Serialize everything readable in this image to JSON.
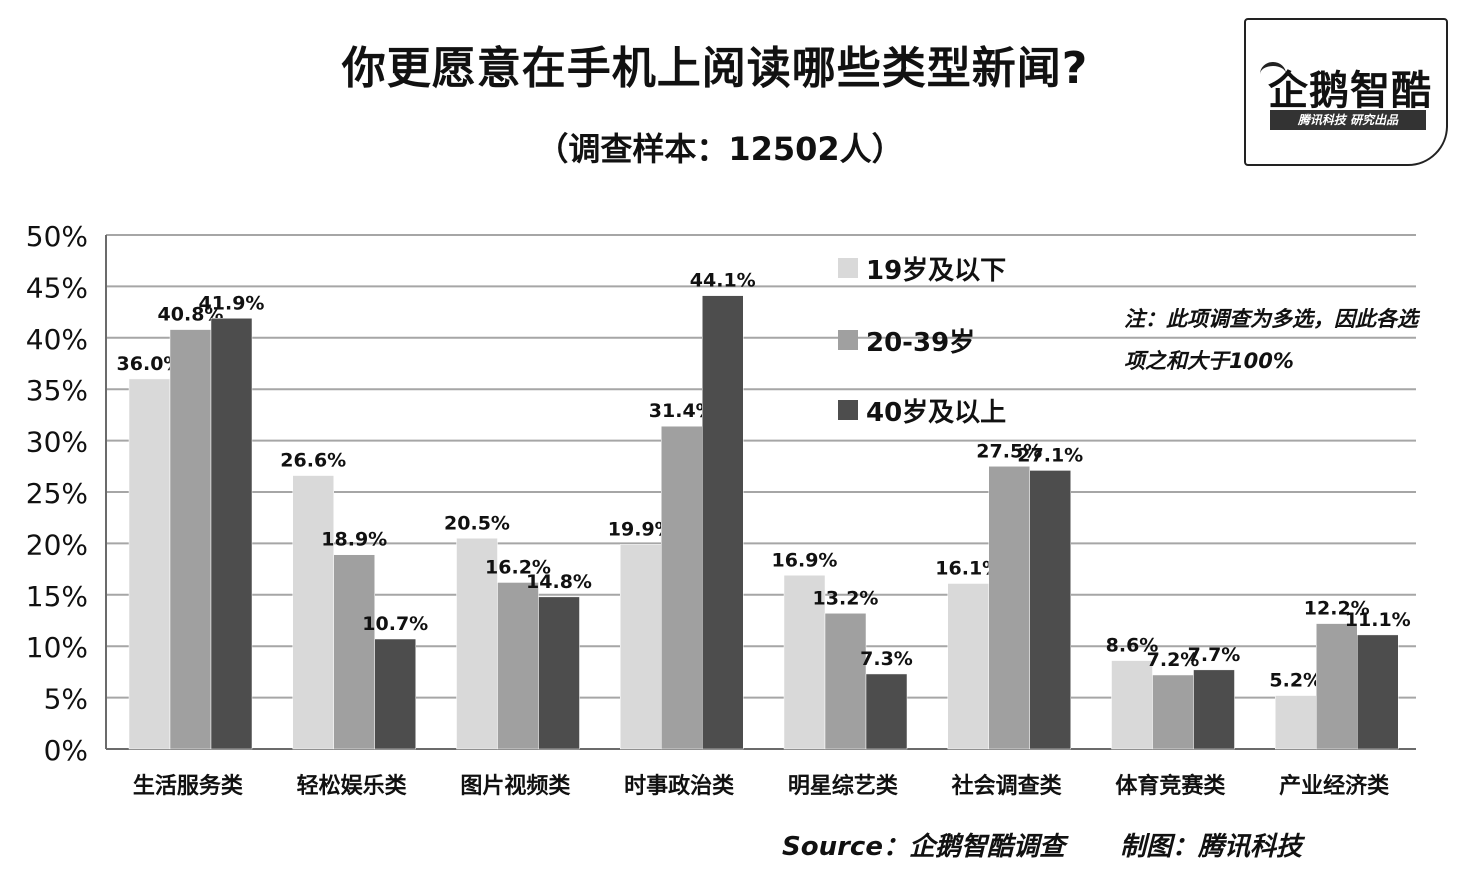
{
  "title": "你更愿意在手机上阅读哪些类型新闻?",
  "subtitle": "（调查样本：12502人）",
  "logo": {
    "name": "企鹅智酷",
    "tagline": "腾讯科技 研究出品"
  },
  "note": "注：此项调查为多选，因此各选项之和大于100%",
  "source": "Source：企鹅智酷调查",
  "credit": "制图：腾讯科技",
  "colors": {
    "series1": "#d9d9d9",
    "series2": "#a0a0a0",
    "series3": "#4d4d4d",
    "grid": "#a6a6a6",
    "axis": "#6b6b6b"
  },
  "chart_data": {
    "type": "bar",
    "title": "你更愿意在手机上阅读哪些类型新闻?",
    "subtitle": "（调查样本：12502人）",
    "categories": [
      "生活服务类",
      "轻松娱乐类",
      "图片视频类",
      "时事政治类",
      "明星综艺类",
      "社会调查类",
      "体育竞赛类",
      "产业经济类"
    ],
    "series": [
      {
        "name": "19岁及以下",
        "values": [
          36.0,
          26.6,
          20.5,
          19.9,
          16.9,
          16.1,
          8.6,
          5.2
        ],
        "labels": [
          "36.0%",
          "26.6%",
          "20.5%",
          "19.9%",
          "16.9%",
          "16.1%",
          "8.6%",
          "5.2%"
        ]
      },
      {
        "name": "20-39岁",
        "values": [
          40.8,
          18.9,
          16.2,
          31.4,
          13.2,
          27.5,
          7.2,
          12.2
        ],
        "labels": [
          "40.8%",
          "18.9%",
          "16.2%",
          "31.4%",
          "13.2%",
          "27.5%",
          "7.2%",
          "12.2%"
        ]
      },
      {
        "name": "40岁及以上",
        "values": [
          41.9,
          10.7,
          14.8,
          44.1,
          7.3,
          27.1,
          7.7,
          11.1
        ],
        "labels": [
          "41.9%",
          "10.7%",
          "14.8%",
          "44.1%",
          "7.3%",
          "27.1%",
          "7.7%",
          "11.1%"
        ]
      }
    ],
    "ylim": [
      0,
      50
    ],
    "yticks": [
      "0%",
      "5%",
      "10%",
      "15%",
      "20%",
      "25%",
      "30%",
      "35%",
      "40%",
      "45%",
      "50%"
    ],
    "grid": true,
    "legend_position": "top-right"
  }
}
